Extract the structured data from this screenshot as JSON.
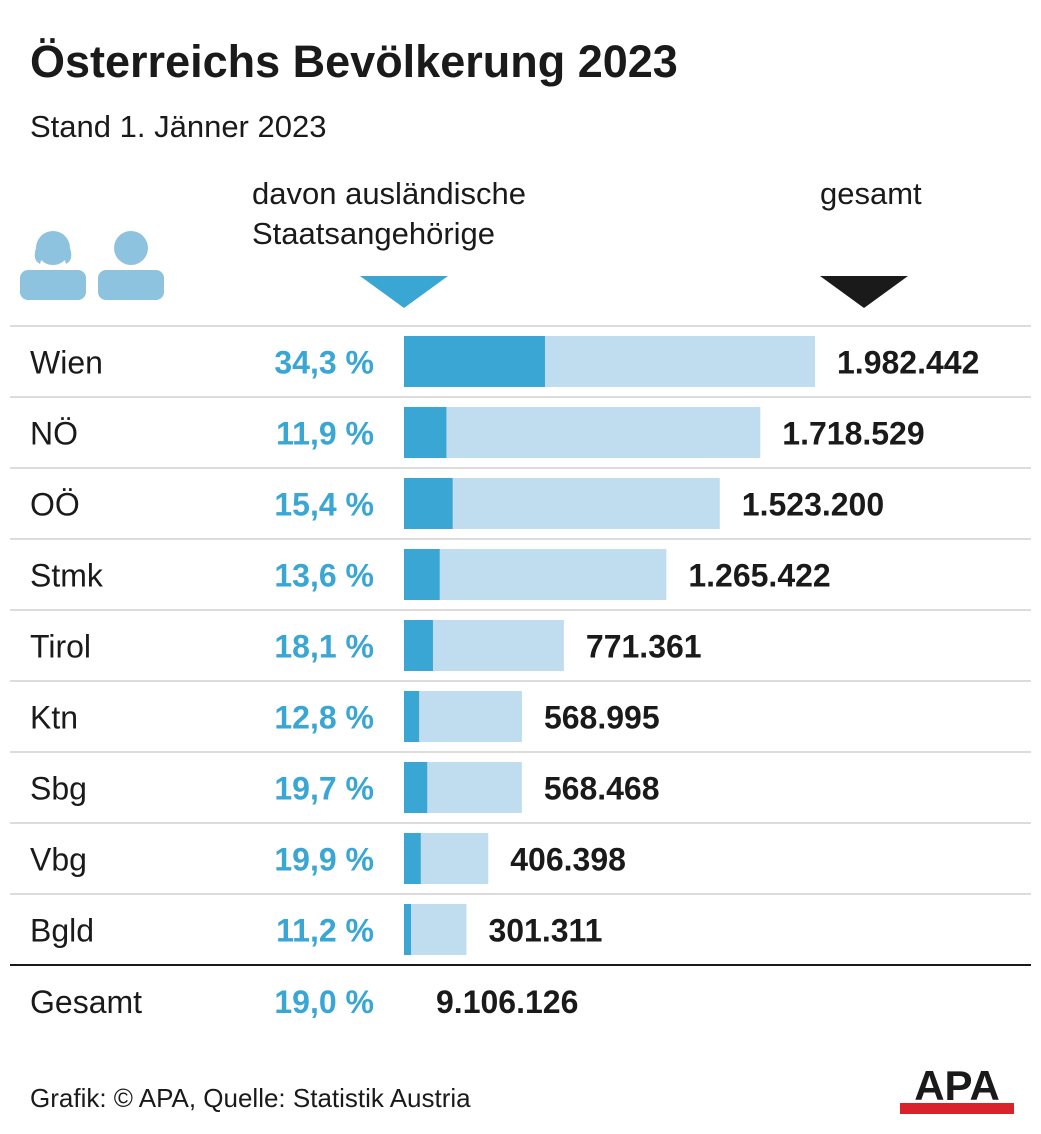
{
  "colors": {
    "foreign": "#3aa6d3",
    "total_bar": "#c0ddef",
    "text_dark": "#1a1a1a",
    "divider": "#d0d0d0",
    "person": "#8ec3df",
    "logo_red": "#d8232a"
  },
  "icons": [
    "person-icon",
    "person-icon"
  ],
  "headers": {
    "foreign_line1": "davon ausländische",
    "foreign_line2": "Staatsangehörige",
    "total": "gesamt"
  },
  "footer": {
    "text": "Grafik: © APA, Quelle: Statistik Austria",
    "logo_text": "APA"
  },
  "chart_data": {
    "type": "bar",
    "title": "Österreichs Bevölkerung 2023",
    "subtitle": "Stand 1. Jänner 2023",
    "categories": [
      "Wien",
      "NÖ",
      "OÖ",
      "Stmk",
      "Tirol",
      "Ktn",
      "Sbg",
      "Vbg",
      "Bgld"
    ],
    "series": [
      {
        "name": "gesamt",
        "values": [
          1982442,
          1718529,
          1523200,
          1265422,
          771361,
          568995,
          568468,
          406398,
          301311
        ]
      },
      {
        "name": "davon ausländische Staatsangehörige (%)",
        "values": [
          34.3,
          11.9,
          15.4,
          13.6,
          18.1,
          12.8,
          19.7,
          19.9,
          11.2
        ]
      }
    ],
    "value_labels": [
      "1.982.442",
      "1.718.529",
      "1.523.200",
      "1.265.422",
      "771.361",
      "568.995",
      "568.468",
      "406.398",
      "301.311"
    ],
    "percent_labels": [
      "34,3 %",
      "11,9 %",
      "15,4 %",
      "13,6 %",
      "18,1 %",
      "12,8 %",
      "19,7 %",
      "19,9 %",
      "11,2 %"
    ],
    "total": {
      "label": "Gesamt",
      "percent_label": "19,0 %",
      "value_label": "9.106.126",
      "value": 9106126,
      "percent": 19.0
    },
    "xlim": [
      0,
      1982442
    ]
  }
}
